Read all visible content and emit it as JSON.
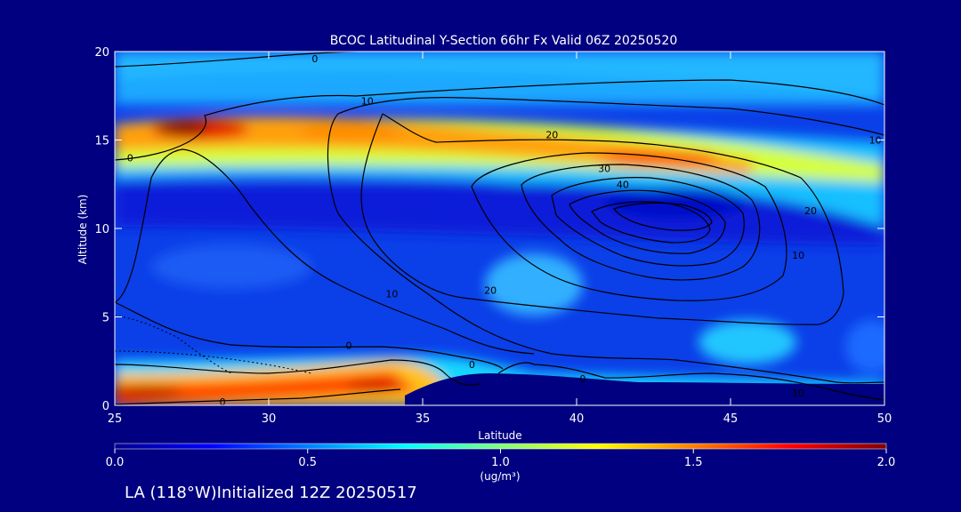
{
  "chart_data": {
    "type": "heatmap",
    "title": "BCOC Latitudinal Y-Section 66hr  Fx Valid 06Z 20250520",
    "xlabel": "Latitude",
    "ylabel": "Altitude (km)",
    "xlim": [
      25,
      50
    ],
    "ylim": [
      0,
      20
    ],
    "x_ticks": [
      "25",
      "30",
      "35",
      "40",
      "45",
      "50"
    ],
    "y_ticks": [
      "0",
      "5",
      "10",
      "15",
      "20"
    ],
    "grid": false,
    "colorbar": {
      "label": "(ug/m³)",
      "range": [
        0.0,
        2.0
      ],
      "ticks": [
        "0.0",
        "0.5",
        "1.0",
        "1.5",
        "2.0"
      ],
      "position": "bottom"
    },
    "contour_labels": [
      {
        "text": "0",
        "lat": 31.5,
        "alt": 19.6
      },
      {
        "text": "10",
        "lat": 33.2,
        "alt": 17.2
      },
      {
        "text": "0",
        "lat": 25.5,
        "alt": 14.0
      },
      {
        "text": "20",
        "lat": 39.2,
        "alt": 15.3
      },
      {
        "text": "10",
        "lat": 49.7,
        "alt": 15.0
      },
      {
        "text": "30",
        "lat": 40.9,
        "alt": 13.4
      },
      {
        "text": "40",
        "lat": 41.5,
        "alt": 12.5
      },
      {
        "text": "20",
        "lat": 47.6,
        "alt": 11.0
      },
      {
        "text": "10",
        "lat": 47.2,
        "alt": 8.5
      },
      {
        "text": "10",
        "lat": 34.0,
        "alt": 6.3
      },
      {
        "text": "20",
        "lat": 37.2,
        "alt": 6.5
      },
      {
        "text": "0",
        "lat": 32.6,
        "alt": 3.4
      },
      {
        "text": "0",
        "lat": 36.6,
        "alt": 2.3
      },
      {
        "text": "0",
        "lat": 40.2,
        "alt": 1.5
      },
      {
        "text": "0",
        "lat": 28.5,
        "alt": 0.2
      },
      {
        "text": "10",
        "lat": 47.2,
        "alt": 0.7
      }
    ]
  },
  "footer": {
    "caption": "LA (118°W)Initialized 12Z 20250517"
  },
  "colors": {
    "background": "#000080",
    "colormap": [
      "#00008f",
      "#0000ff",
      "#00bfff",
      "#7fff7f",
      "#ffff00",
      "#ff7f00",
      "#ff0000",
      "#800000"
    ],
    "contour": "#000000",
    "terrain": "#000080"
  }
}
